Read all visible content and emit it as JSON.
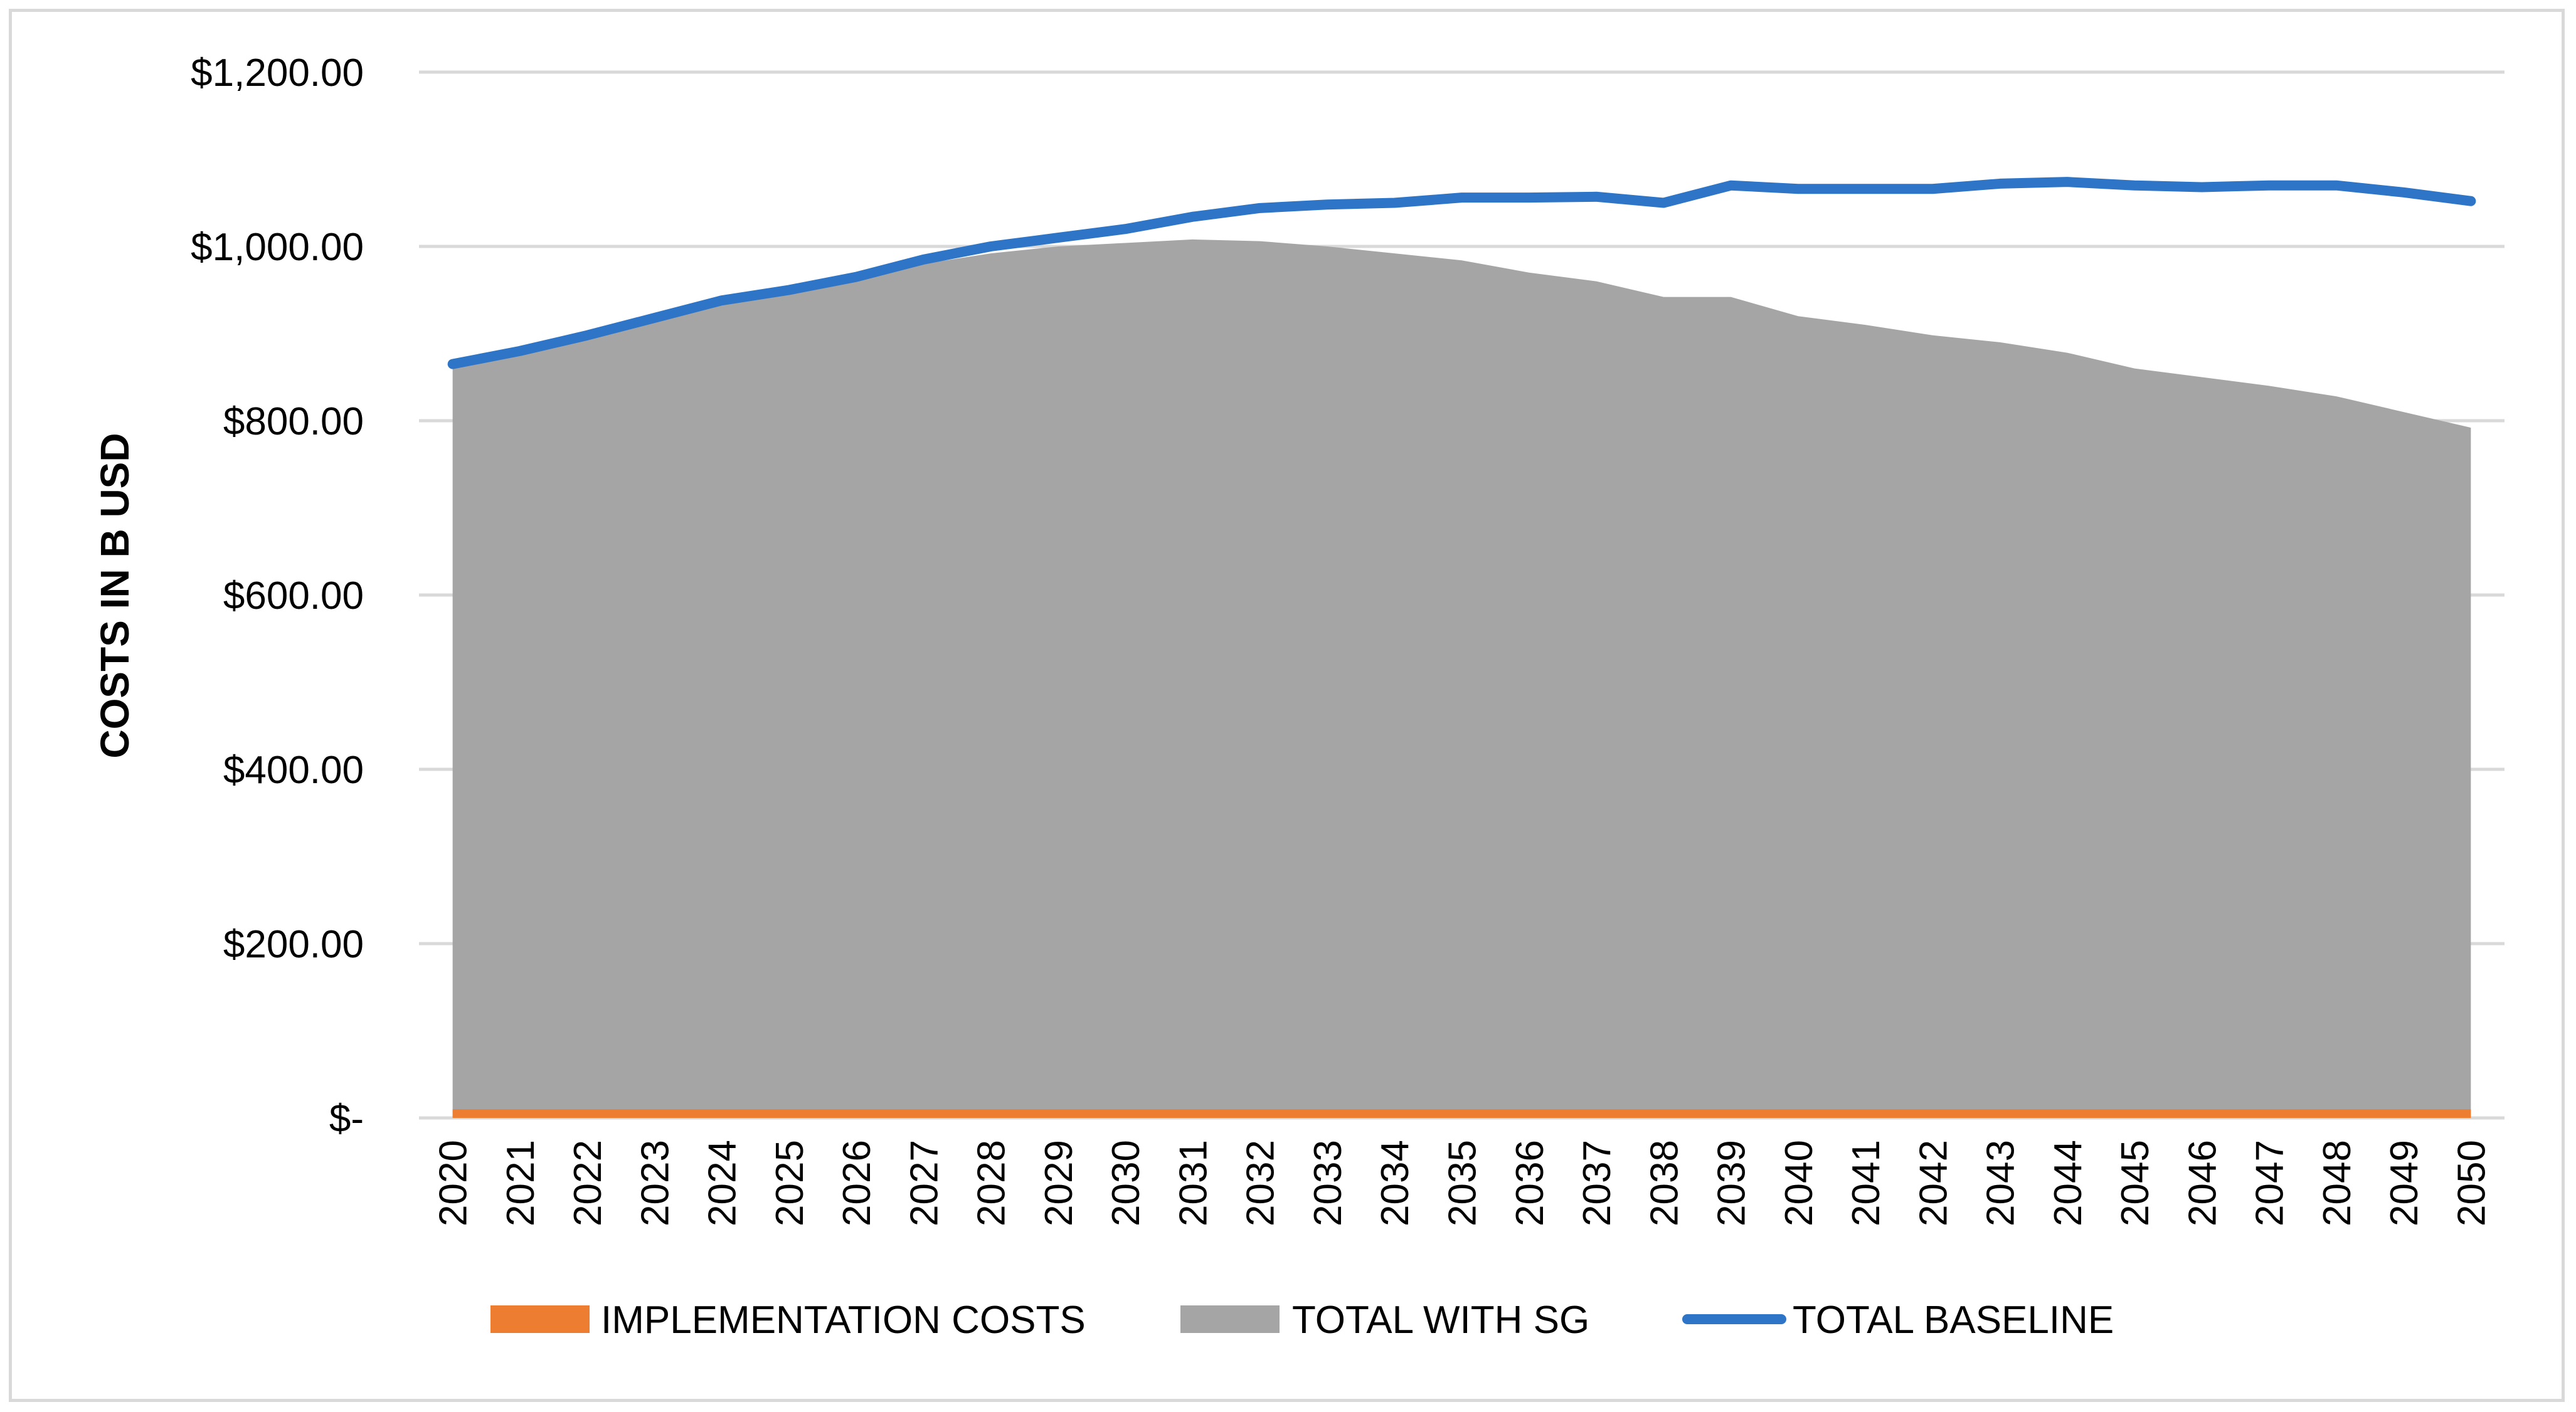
{
  "chart_data": {
    "type": "area",
    "title": "",
    "xlabel": "",
    "ylabel": "COSTS IN B USD",
    "ylim": [
      0,
      1200
    ],
    "y_ticks": [
      0,
      200,
      400,
      600,
      800,
      1000,
      1200
    ],
    "y_tick_labels": [
      "$-",
      "$200.00",
      "$400.00",
      "$600.00",
      "$800.00",
      "$1,000.00",
      "$1,200.00"
    ],
    "grid": true,
    "legend_position": "bottom",
    "categories": [
      "2020",
      "2021",
      "2022",
      "2023",
      "2024",
      "2025",
      "2026",
      "2027",
      "2028",
      "2029",
      "2030",
      "2031",
      "2032",
      "2033",
      "2034",
      "2035",
      "2036",
      "2037",
      "2038",
      "2039",
      "2040",
      "2041",
      "2042",
      "2043",
      "2044",
      "2045",
      "2046",
      "2047",
      "2048",
      "2049",
      "2050"
    ],
    "series": [
      {
        "name": "IMPLEMENTATION COSTS",
        "kind": "area",
        "color": "#ed7d31",
        "values": [
          10,
          10,
          10,
          10,
          10,
          10,
          10,
          10,
          10,
          10,
          10,
          10,
          10,
          10,
          10,
          10,
          10,
          10,
          10,
          10,
          10,
          10,
          10,
          10,
          10,
          10,
          10,
          10,
          10,
          10,
          10
        ]
      },
      {
        "name": "TOTAL WITH SG",
        "kind": "area",
        "color": "#a5a5a5",
        "values": [
          865,
          880,
          898,
          918,
          936,
          948,
          962,
          980,
          992,
          1000,
          1004,
          1008,
          1006,
          1000,
          992,
          984,
          970,
          960,
          942,
          942,
          920,
          910,
          898,
          890,
          878,
          860,
          850,
          840,
          828,
          810,
          792
        ]
      },
      {
        "name": "TOTAL BASELINE",
        "kind": "line",
        "color": "#2e75c8",
        "values": [
          865,
          880,
          898,
          918,
          938,
          950,
          965,
          985,
          1000,
          1010,
          1020,
          1034,
          1044,
          1048,
          1050,
          1056,
          1056,
          1057,
          1050,
          1070,
          1066,
          1066,
          1066,
          1072,
          1074,
          1070,
          1068,
          1070,
          1070,
          1062,
          1052
        ]
      }
    ]
  }
}
